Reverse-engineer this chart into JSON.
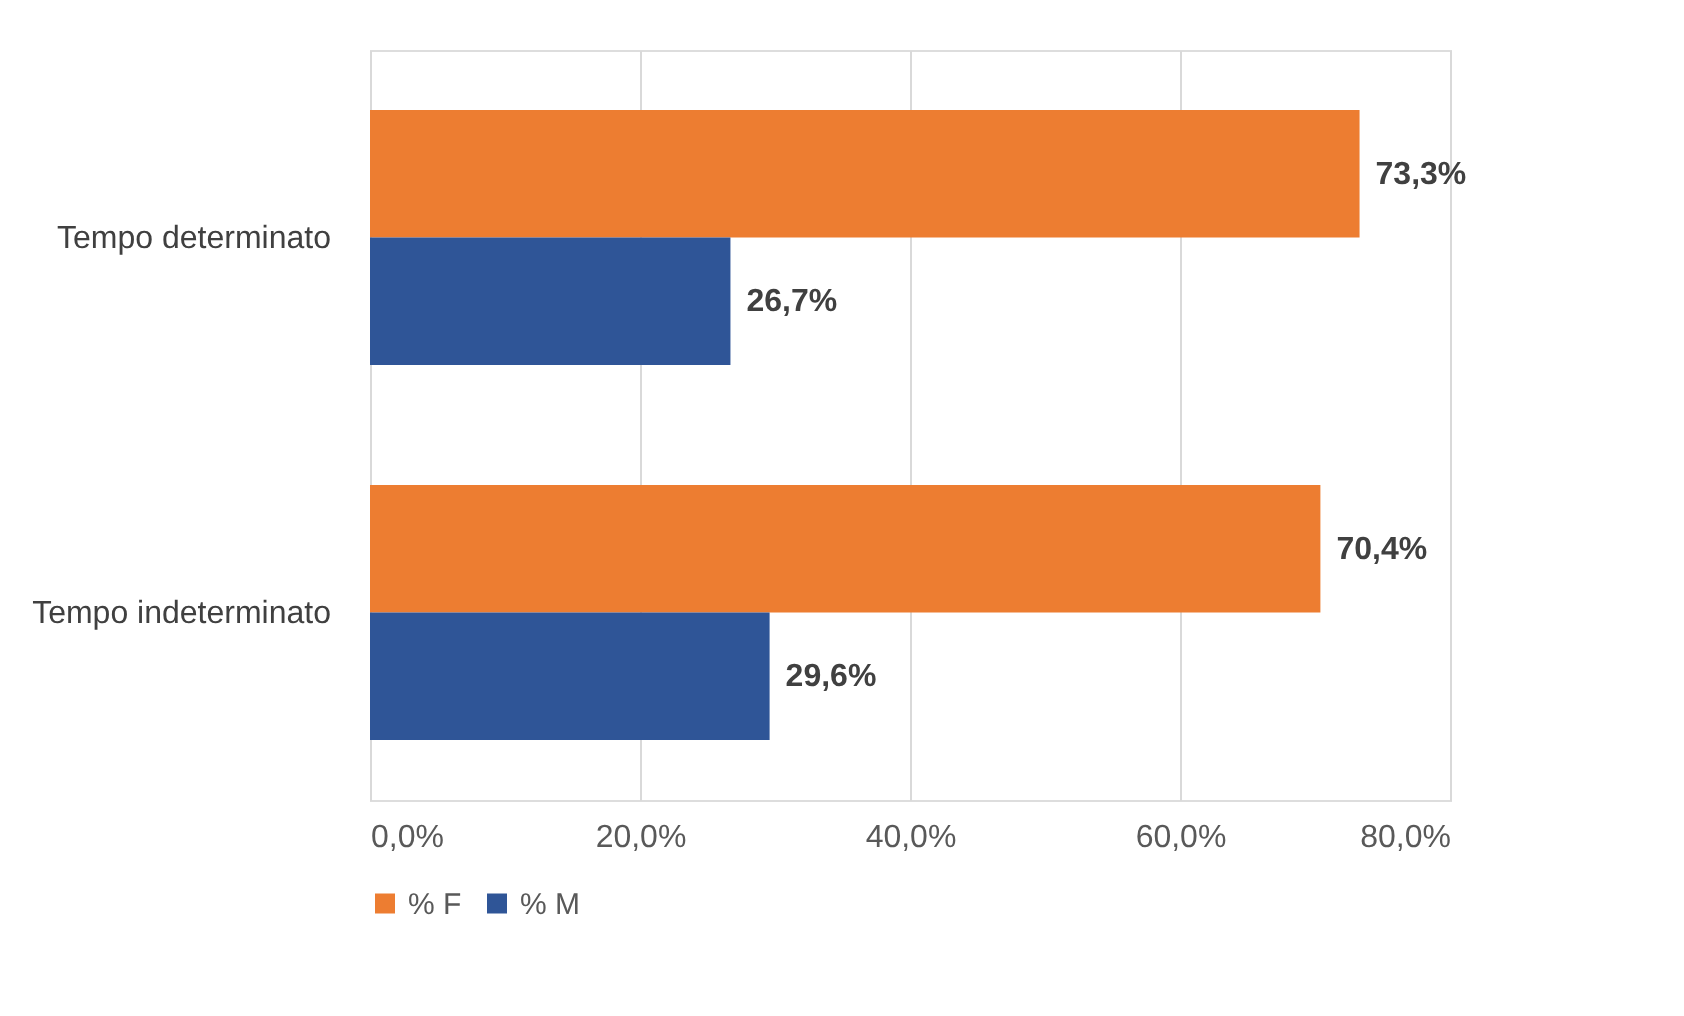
{
  "chart_data": {
    "type": "bar",
    "orientation": "horizontal",
    "categories": [
      "Tempo determinato",
      "Tempo indeterminato"
    ],
    "series": [
      {
        "name": "% F",
        "color": "#ed7d31",
        "values": [
          73.3,
          70.4
        ],
        "value_labels": [
          "73,3%",
          "70,4%"
        ]
      },
      {
        "name": "% M",
        "color": "#2f5597",
        "values": [
          26.7,
          29.6
        ],
        "value_labels": [
          "26,7%",
          "29,6%"
        ]
      }
    ],
    "xlim": [
      0,
      80
    ],
    "xticks": [
      {
        "value": 0,
        "label": "0,0%"
      },
      {
        "value": 20,
        "label": "20,0%"
      },
      {
        "value": 40,
        "label": "40,0%"
      },
      {
        "value": 60,
        "label": "60,0%"
      },
      {
        "value": 80,
        "label": "80,0%"
      }
    ],
    "grid": "x",
    "legend": "bottom"
  }
}
